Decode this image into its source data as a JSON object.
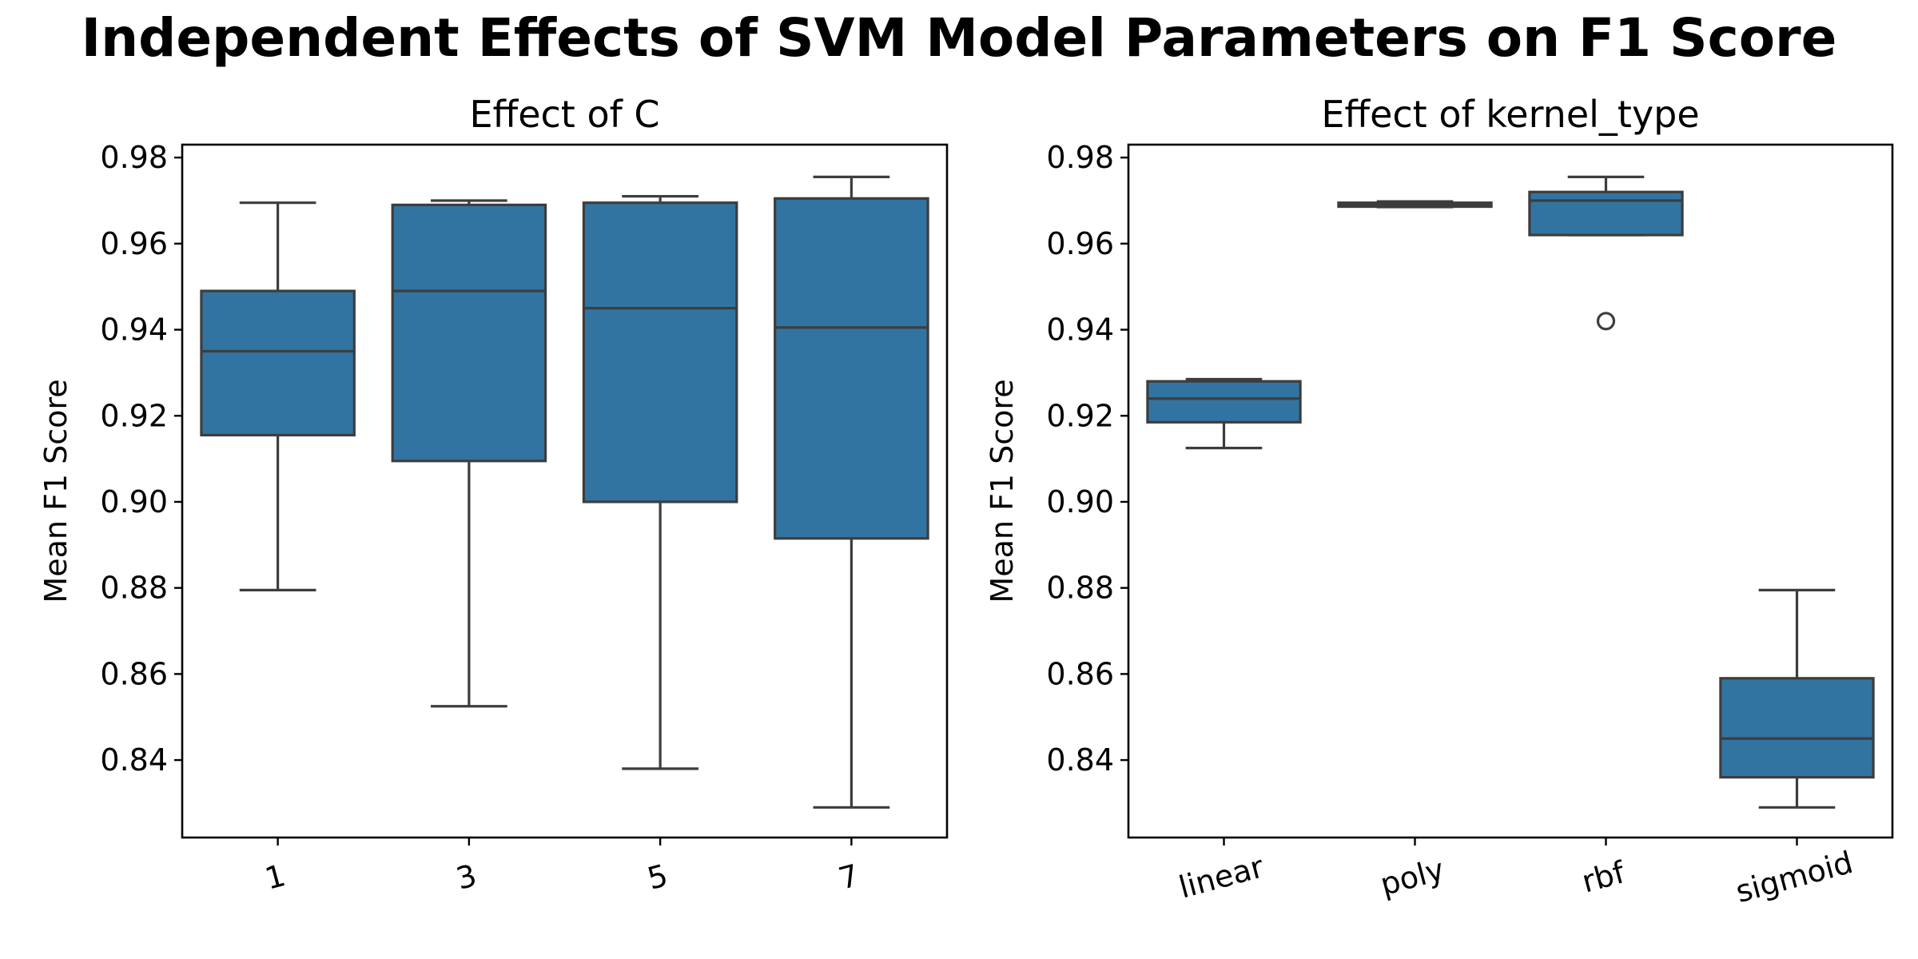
{
  "figure_title": "Independent Effects of SVM Model Parameters on F1 Score",
  "colors": {
    "box_fill": "#3274a1",
    "line": "#3d3d3d"
  },
  "chart_data": [
    {
      "type": "box",
      "title": "Effect of C",
      "xlabel": "",
      "ylabel": "Mean F1 Score",
      "ylim": [
        0.822,
        0.983
      ],
      "yticks": [
        0.84,
        0.86,
        0.88,
        0.9,
        0.92,
        0.94,
        0.96,
        0.98
      ],
      "ytick_labels": [
        "0.84",
        "0.86",
        "0.88",
        "0.90",
        "0.92",
        "0.94",
        "0.96",
        "0.98"
      ],
      "categories": [
        "1",
        "3",
        "5",
        "7"
      ],
      "boxes": [
        {
          "whislo": 0.8795,
          "q1": 0.9155,
          "med": 0.935,
          "q3": 0.949,
          "whishi": 0.9695,
          "fliers": []
        },
        {
          "whislo": 0.8525,
          "q1": 0.9095,
          "med": 0.949,
          "q3": 0.969,
          "whishi": 0.97,
          "fliers": []
        },
        {
          "whislo": 0.838,
          "q1": 0.9,
          "med": 0.945,
          "q3": 0.9695,
          "whishi": 0.971,
          "fliers": []
        },
        {
          "whislo": 0.829,
          "q1": 0.8915,
          "med": 0.9405,
          "q3": 0.9705,
          "whishi": 0.9755,
          "fliers": []
        }
      ]
    },
    {
      "type": "box",
      "title": "Effect of kernel_type",
      "xlabel": "",
      "ylabel": "Mean F1 Score",
      "ylim": [
        0.822,
        0.983
      ],
      "yticks": [
        0.84,
        0.86,
        0.88,
        0.9,
        0.92,
        0.94,
        0.96,
        0.98
      ],
      "ytick_labels": [
        "0.84",
        "0.86",
        "0.88",
        "0.90",
        "0.92",
        "0.94",
        "0.96",
        "0.98"
      ],
      "categories": [
        "linear",
        "poly",
        "rbf",
        "sigmoid"
      ],
      "boxes": [
        {
          "whislo": 0.9125,
          "q1": 0.9185,
          "med": 0.924,
          "q3": 0.928,
          "whishi": 0.9285,
          "fliers": []
        },
        {
          "whislo": 0.9685,
          "q1": 0.9686,
          "med": 0.969,
          "q3": 0.9695,
          "whishi": 0.9698,
          "fliers": []
        },
        {
          "whislo": 0.962,
          "q1": 0.962,
          "med": 0.97,
          "q3": 0.972,
          "whishi": 0.9755,
          "fliers": [
            0.942
          ]
        },
        {
          "whislo": 0.829,
          "q1": 0.836,
          "med": 0.845,
          "q3": 0.859,
          "whishi": 0.8795,
          "fliers": []
        }
      ]
    }
  ]
}
